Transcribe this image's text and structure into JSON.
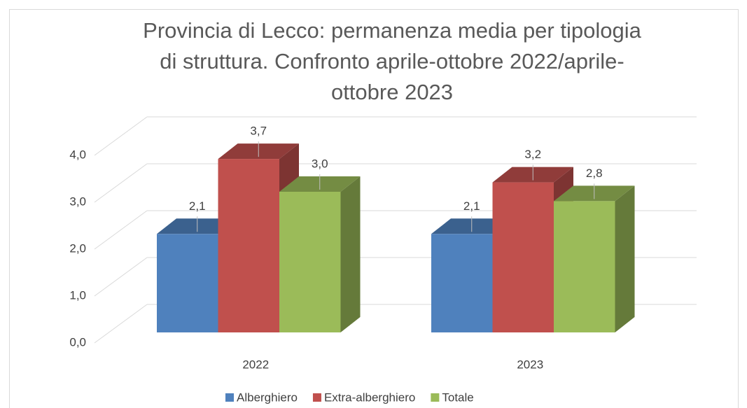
{
  "chart_data": {
    "type": "bar3d",
    "title": "Provincia di Lecco: permanenza media per tipologia di struttura. Confronto aprile-ottobre 2022/aprile-ottobre 2023",
    "categories": [
      "2022",
      "2023"
    ],
    "series": [
      {
        "name": "Alberghiero",
        "color": "#4f81bd",
        "values": [
          2.1,
          2.1
        ],
        "value_labels": [
          "2,1",
          "2,1"
        ]
      },
      {
        "name": "Extra-alberghiero",
        "color": "#c0504d",
        "values": [
          3.7,
          3.2
        ],
        "value_labels": [
          "3,7",
          "3,2"
        ]
      },
      {
        "name": "Totale",
        "color": "#9bbb59",
        "values": [
          3.0,
          2.8
        ],
        "value_labels": [
          "3,0",
          "2,8"
        ]
      }
    ],
    "ylim": [
      0,
      4
    ],
    "yticks": [
      {
        "value": 0,
        "label": "0,0"
      },
      {
        "value": 1,
        "label": "1,0"
      },
      {
        "value": 2,
        "label": "2,0"
      },
      {
        "value": 3,
        "label": "3,0"
      },
      {
        "value": 4,
        "label": "4,0"
      }
    ],
    "grid": true,
    "legend": "bottom"
  }
}
